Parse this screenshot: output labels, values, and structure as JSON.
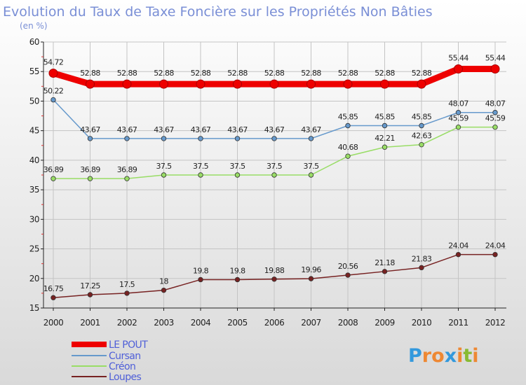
{
  "chart_data": {
    "type": "line",
    "title": "Evolution du Taux de Taxe Foncière sur les Propriétés Non Bâties",
    "subtitle": "(en %)",
    "categories": [
      "2000",
      "2001",
      "2002",
      "2003",
      "2004",
      "2005",
      "2006",
      "2007",
      "2008",
      "2009",
      "2010",
      "2011",
      "2012"
    ],
    "y_ticks": [
      "15",
      "20",
      "25",
      "30",
      "35",
      "40",
      "45",
      "50",
      "55",
      "60"
    ],
    "ylim": [
      15,
      60
    ],
    "grid": true,
    "legend_position": "bottom-left",
    "series": [
      {
        "name": "LE POUT",
        "color": "#ee0000",
        "values": [
          54.72,
          52.88,
          52.88,
          52.88,
          52.88,
          52.88,
          52.88,
          52.88,
          52.88,
          52.88,
          52.88,
          55.44,
          55.44
        ],
        "labels": [
          "54.72",
          "52.88",
          "52.88",
          "52.88",
          "52.88",
          "52.88",
          "52.88",
          "52.88",
          "52.88",
          "52.88",
          "52.88",
          "55.44",
          "55.44"
        ]
      },
      {
        "name": "Cursan",
        "color": "#6699cc",
        "values": [
          50.22,
          43.67,
          43.67,
          43.67,
          43.67,
          43.67,
          43.67,
          43.67,
          45.85,
          45.85,
          45.85,
          48.07,
          48.07
        ],
        "labels": [
          "50.22",
          "43.67",
          "43.67",
          "43.67",
          "43.67",
          "43.67",
          "43.67",
          "43.67",
          "45.85",
          "45.85",
          "45.85",
          "48.07",
          "48.07"
        ]
      },
      {
        "name": "Créon",
        "color": "#99dd66",
        "values": [
          36.89,
          36.89,
          36.89,
          37.5,
          37.5,
          37.5,
          37.5,
          37.5,
          40.68,
          42.21,
          42.63,
          45.59,
          45.59
        ],
        "labels": [
          "36.89",
          "36.89",
          "36.89",
          "37.5",
          "37.5",
          "37.5",
          "37.5",
          "37.5",
          "40.68",
          "42.21",
          "42.63",
          "45.59",
          "45.59"
        ]
      },
      {
        "name": "Loupes",
        "color": "#772222",
        "values": [
          16.75,
          17.25,
          17.5,
          18,
          19.8,
          19.8,
          19.88,
          19.96,
          20.56,
          21.18,
          21.83,
          24.04,
          24.04
        ],
        "labels": [
          "16.75",
          "17.25",
          "17.5",
          "18",
          "19.8",
          "19.8",
          "19.88",
          "19.96",
          "20.56",
          "21.18",
          "21.83",
          "24.04",
          "24.04"
        ]
      }
    ]
  },
  "logo": {
    "letters": [
      "P",
      "r",
      "o",
      "x",
      "i",
      "t",
      "i"
    ],
    "colors": [
      "#3399dd",
      "#ee8833",
      "#ee8833",
      "#3399dd",
      "#ee8833",
      "#88bb33",
      "#ee8833"
    ]
  }
}
